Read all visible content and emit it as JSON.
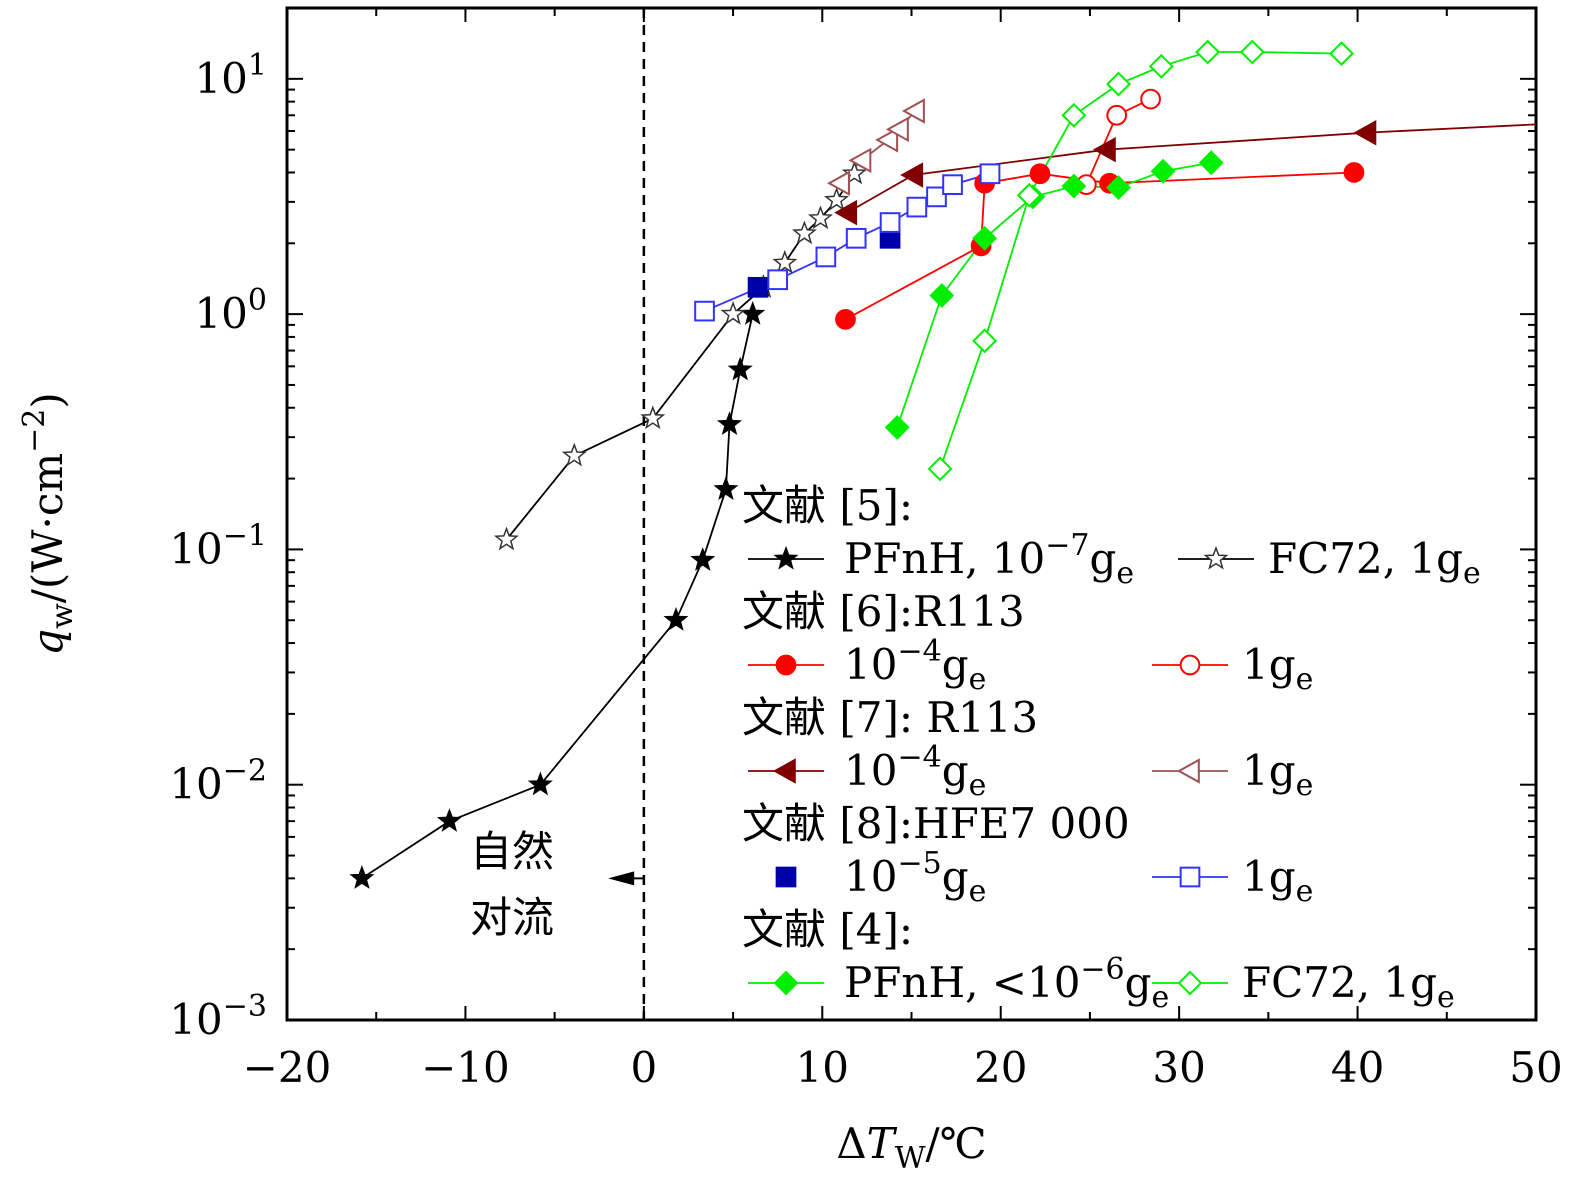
{
  "chart_data": {
    "type": "scatter",
    "xlabel": "ΔT_W/℃",
    "ylabel": "q_w/(W·cm^-2)",
    "y_scale": "log",
    "xlim": [
      -20,
      50
    ],
    "ylim": [
      0.001,
      20
    ],
    "x_ticks": [
      -20,
      -10,
      0,
      10,
      20,
      30,
      40,
      50
    ],
    "x_tick_labels": [
      "−20",
      "−10",
      "0",
      "10",
      "20",
      "30",
      "40",
      "50"
    ],
    "y_ticks": [
      0.001,
      0.01,
      0.1,
      1,
      10
    ],
    "y_tick_labels": [
      {
        "base": "10",
        "exp": "−3"
      },
      {
        "base": "10",
        "exp": "−2"
      },
      {
        "base": "10",
        "exp": "−1"
      },
      {
        "base": "10",
        "exp": "0"
      },
      {
        "base": "10",
        "exp": "1"
      }
    ],
    "vline": {
      "x": 0,
      "style": "dashed"
    },
    "annotation": {
      "line1": "自然",
      "line2": "对流",
      "arrow_to_x": -2,
      "arrow_from_x": 0,
      "y": 0.004
    },
    "legend": {
      "placement": "bottom-right",
      "groups": [
        {
          "header": "文献 [5]:",
          "entries": [
            {
              "series": 0,
              "label": "PFnH, 10",
              "exp": "−7",
              "unit": "g",
              "sub": "e"
            },
            {
              "series": 1,
              "label": "FC72, 1g",
              "exp": "",
              "unit": "",
              "sub": "e"
            }
          ]
        },
        {
          "header": "文献 [6]:R113",
          "entries": [
            {
              "series": 2,
              "label": "10",
              "exp": "−4",
              "unit": "g",
              "sub": "e"
            },
            {
              "series": 3,
              "label": "1g",
              "exp": "",
              "unit": "",
              "sub": "e"
            }
          ]
        },
        {
          "header": "文献 [7]: R113",
          "entries": [
            {
              "series": 4,
              "label": "10",
              "exp": "−4",
              "unit": "g",
              "sub": "e"
            },
            {
              "series": 5,
              "label": "1g",
              "exp": "",
              "unit": "",
              "sub": "e"
            }
          ]
        },
        {
          "header": "文献 [8]:HFE7 000",
          "entries": [
            {
              "series": 6,
              "label": "10",
              "exp": "−5",
              "unit": "g",
              "sub": "e"
            },
            {
              "series": 7,
              "label": "1g",
              "exp": "",
              "unit": "",
              "sub": "e"
            }
          ]
        },
        {
          "header": "文献 [4]:",
          "entries": [
            {
              "series": 8,
              "label": "PFnH, <10",
              "exp": "−6",
              "unit": "g",
              "sub": "e"
            },
            {
              "series": 9,
              "label": "FC72, 1g",
              "exp": "",
              "unit": "",
              "sub": "e"
            }
          ]
        }
      ]
    },
    "series": [
      {
        "color": "#000000",
        "marker": "star",
        "filled": true,
        "line": true,
        "x": [
          -15.8,
          -10.9,
          -5.8,
          1.8,
          3.3,
          4.6,
          4.8,
          5.4,
          6.1
        ],
        "y": [
          0.004,
          0.007,
          0.01,
          0.05,
          0.09,
          0.18,
          0.34,
          0.58,
          1.0
        ]
      },
      {
        "color": "#000000",
        "marker": "star",
        "filled": false,
        "line": true,
        "x": [
          -7.7,
          -3.9,
          0.5,
          5.0,
          6.7,
          7.9,
          9.0,
          9.9,
          10.8,
          11.8
        ],
        "y": [
          0.11,
          0.25,
          0.36,
          1.0,
          1.3,
          1.65,
          2.2,
          2.55,
          3.05,
          3.95
        ]
      },
      {
        "color": "#ff0000",
        "marker": "circle",
        "filled": true,
        "line": true,
        "x": [
          11.3,
          18.9,
          19.1,
          22.2,
          26.1,
          39.8
        ],
        "y": [
          0.95,
          1.95,
          3.6,
          3.95,
          3.6,
          4.0
        ]
      },
      {
        "color": "#ff0000",
        "marker": "circle",
        "filled": false,
        "line": true,
        "x": [
          24.8,
          26.5,
          28.4
        ],
        "y": [
          3.55,
          7.0,
          8.2
        ]
      },
      {
        "color": "#800000",
        "marker": "triangle-left",
        "filled": true,
        "line": true,
        "x": [
          11.4,
          15.1,
          25.9,
          40.5,
          50
        ],
        "y": [
          2.7,
          3.9,
          5.0,
          5.9,
          6.4
        ]
      },
      {
        "color": "#a05050",
        "marker": "triangle-left",
        "filled": false,
        "line": true,
        "x": [
          11.0,
          12.2,
          13.7,
          14.3,
          15.2
        ],
        "y": [
          3.6,
          4.5,
          5.5,
          6.1,
          7.3
        ]
      },
      {
        "color": "#0000aa",
        "marker": "square",
        "filled": true,
        "line": false,
        "x": [
          6.4,
          13.8
        ],
        "y": [
          1.3,
          2.1
        ]
      },
      {
        "color": "#3333ff",
        "marker": "square",
        "filled": false,
        "line": true,
        "x": [
          3.4,
          7.5,
          10.2,
          11.9,
          13.8,
          15.3,
          16.4,
          17.3,
          19.4
        ],
        "y": [
          1.03,
          1.4,
          1.75,
          2.1,
          2.45,
          2.85,
          3.15,
          3.55,
          3.95
        ]
      },
      {
        "color": "#00ee00",
        "marker": "diamond",
        "filled": true,
        "line": true,
        "x": [
          14.2,
          16.7,
          19.1,
          21.8,
          24.1,
          26.6,
          29.1,
          31.8
        ],
        "y": [
          0.33,
          1.2,
          2.1,
          3.15,
          3.5,
          3.45,
          4.05,
          4.4
        ]
      },
      {
        "color": "#00ee00",
        "marker": "diamond",
        "filled": false,
        "line": true,
        "x": [
          16.6,
          19.1,
          21.6,
          24.1,
          26.6,
          29.0,
          31.6,
          34.1,
          39.1
        ],
        "y": [
          0.22,
          0.77,
          3.2,
          7.0,
          9.5,
          11.3,
          13.0,
          13.0,
          12.8
        ]
      }
    ]
  }
}
